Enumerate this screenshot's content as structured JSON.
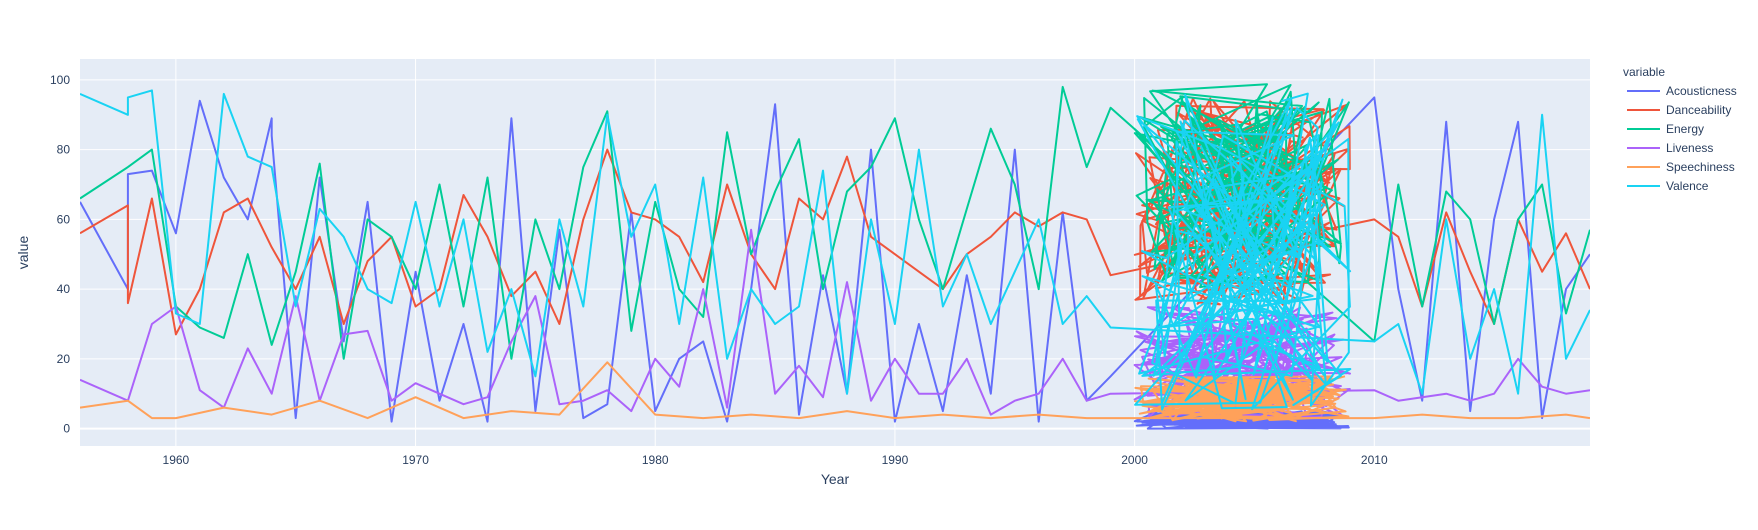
{
  "chart_data": {
    "type": "line",
    "xlabel": "Year",
    "ylabel": "value",
    "xlim": [
      1956,
      2019
    ],
    "ylim": [
      -5,
      106
    ],
    "x_ticks": [
      1960,
      1970,
      1980,
      1990,
      2000,
      2010
    ],
    "y_ticks": [
      0,
      20,
      40,
      60,
      80,
      100
    ],
    "grid": true,
    "legend": {
      "title": "variable",
      "placement": "right"
    },
    "dense_region": {
      "x_start": 2000,
      "x_end": 2009
    },
    "series": [
      {
        "name": "Acousticness",
        "color": "#636EFA",
        "x": [
          1956,
          1958,
          1958,
          1959,
          1960,
          1961,
          1962,
          1963,
          1964,
          1964,
          1965,
          1966,
          1967,
          1968,
          1969,
          1970,
          1971,
          1972,
          1973,
          1974,
          1975,
          1976,
          1977,
          1978,
          1979,
          1980,
          1981,
          1982,
          1983,
          1984,
          1985,
          1986,
          1987,
          1988,
          1989,
          1990,
          1991,
          1992,
          1993,
          1994,
          1995,
          1996,
          1997,
          1998,
          1999,
          2010,
          2011,
          2012,
          2013,
          2014,
          2015,
          2016,
          2017,
          2018,
          2019
        ],
        "y": [
          65,
          40,
          73,
          74,
          56,
          94,
          72,
          60,
          89,
          84,
          3,
          72,
          25,
          65,
          2,
          45,
          8,
          30,
          2,
          89,
          5,
          57,
          3,
          7,
          62,
          5,
          20,
          25,
          2,
          40,
          93,
          4,
          44,
          10,
          80,
          2,
          30,
          5,
          44,
          10,
          80,
          2,
          62,
          8,
          15,
          95,
          40,
          8,
          88,
          5,
          60,
          88,
          3,
          40,
          50
        ]
      },
      {
        "name": "Danceability",
        "color": "#EF553B",
        "x": [
          1956,
          1958,
          1958,
          1959,
          1960,
          1961,
          1962,
          1963,
          1964,
          1965,
          1966,
          1967,
          1968,
          1969,
          1970,
          1971,
          1972,
          1973,
          1974,
          1975,
          1976,
          1977,
          1978,
          1979,
          1980,
          1981,
          1982,
          1983,
          1984,
          1985,
          1986,
          1987,
          1988,
          1989,
          1990,
          1991,
          1992,
          1993,
          1994,
          1995,
          1996,
          1997,
          1998,
          1999,
          2010,
          2011,
          2012,
          2013,
          2014,
          2015,
          2016,
          2017,
          2018,
          2019
        ],
        "y": [
          56,
          64,
          36,
          66,
          27,
          40,
          62,
          66,
          52,
          40,
          55,
          30,
          48,
          55,
          35,
          40,
          67,
          55,
          38,
          45,
          30,
          60,
          80,
          62,
          60,
          55,
          42,
          70,
          50,
          40,
          66,
          60,
          78,
          55,
          50,
          45,
          40,
          50,
          55,
          62,
          58,
          62,
          60,
          44,
          60,
          55,
          35,
          62,
          45,
          30,
          60,
          45,
          56,
          40
        ]
      },
      {
        "name": "Energy",
        "color": "#00CC96",
        "x": [
          1956,
          1958,
          1959,
          1960,
          1961,
          1962,
          1963,
          1964,
          1965,
          1966,
          1967,
          1968,
          1969,
          1970,
          1971,
          1972,
          1973,
          1974,
          1975,
          1976,
          1977,
          1978,
          1979,
          1980,
          1981,
          1982,
          1983,
          1984,
          1985,
          1986,
          1987,
          1988,
          1989,
          1990,
          1991,
          1992,
          1993,
          1994,
          1995,
          1996,
          1997,
          1998,
          1999,
          2010,
          2011,
          2012,
          2013,
          2014,
          2015,
          2016,
          2017,
          2018,
          2019
        ],
        "y": [
          66,
          75,
          80,
          35,
          29,
          26,
          50,
          24,
          45,
          76,
          20,
          60,
          55,
          40,
          70,
          35,
          72,
          20,
          60,
          40,
          75,
          91,
          28,
          65,
          40,
          32,
          85,
          50,
          68,
          83,
          40,
          68,
          75,
          89,
          60,
          40,
          63,
          86,
          70,
          40,
          98,
          75,
          92,
          25,
          70,
          35,
          68,
          60,
          30,
          60,
          70,
          33,
          57
        ]
      },
      {
        "name": "Liveness",
        "color": "#AB63FA",
        "x": [
          1956,
          1958,
          1959,
          1960,
          1961,
          1962,
          1963,
          1964,
          1965,
          1966,
          1967,
          1968,
          1969,
          1970,
          1971,
          1972,
          1973,
          1974,
          1975,
          1976,
          1977,
          1978,
          1979,
          1980,
          1981,
          1982,
          1983,
          1984,
          1985,
          1986,
          1987,
          1988,
          1989,
          1990,
          1991,
          1992,
          1993,
          1994,
          1995,
          1996,
          1997,
          1998,
          1999,
          2010,
          2011,
          2012,
          2013,
          2014,
          2015,
          2016,
          2017,
          2018,
          2019
        ],
        "y": [
          14,
          8,
          30,
          35,
          11,
          6,
          23,
          10,
          38,
          8,
          27,
          28,
          8,
          13,
          10,
          7,
          9,
          25,
          38,
          7,
          8,
          11,
          5,
          20,
          12,
          40,
          6,
          57,
          10,
          18,
          9,
          42,
          8,
          20,
          10,
          10,
          20,
          4,
          8,
          10,
          20,
          8,
          10,
          11,
          8,
          9,
          10,
          8,
          10,
          20,
          12,
          10,
          11
        ]
      },
      {
        "name": "Speechiness",
        "color": "#FFA15A",
        "x": [
          1956,
          1958,
          1959,
          1960,
          1962,
          1964,
          1966,
          1968,
          1970,
          1972,
          1974,
          1976,
          1978,
          1980,
          1982,
          1984,
          1986,
          1988,
          1990,
          1992,
          1994,
          1996,
          1998,
          1999,
          2010,
          2012,
          2014,
          2016,
          2018,
          2019
        ],
        "y": [
          6,
          8,
          3,
          3,
          6,
          4,
          8,
          3,
          9,
          3,
          5,
          4,
          19,
          4,
          3,
          4,
          3,
          5,
          3,
          4,
          3,
          4,
          3,
          3,
          3,
          4,
          3,
          3,
          4,
          3
        ]
      },
      {
        "name": "Valence",
        "color": "#19D3F3",
        "x": [
          1956,
          1958,
          1958,
          1959,
          1960,
          1961,
          1962,
          1963,
          1964,
          1965,
          1966,
          1967,
          1968,
          1969,
          1970,
          1971,
          1972,
          1973,
          1974,
          1975,
          1976,
          1977,
          1978,
          1979,
          1980,
          1981,
          1982,
          1983,
          1984,
          1985,
          1986,
          1987,
          1988,
          1989,
          1990,
          1991,
          1992,
          1993,
          1994,
          1995,
          1996,
          1997,
          1998,
          1999,
          2010,
          2011,
          2012,
          2013,
          2014,
          2015,
          2016,
          2017,
          2018,
          2019
        ],
        "y": [
          96,
          90,
          95,
          97,
          33,
          30,
          96,
          78,
          75,
          35,
          63,
          55,
          40,
          36,
          65,
          35,
          60,
          22,
          40,
          15,
          60,
          35,
          90,
          55,
          70,
          30,
          72,
          20,
          40,
          30,
          35,
          74,
          10,
          60,
          30,
          80,
          35,
          50,
          30,
          45,
          60,
          30,
          38,
          29,
          25,
          30,
          10,
          60,
          20,
          40,
          10,
          90,
          20,
          34
        ]
      }
    ]
  }
}
